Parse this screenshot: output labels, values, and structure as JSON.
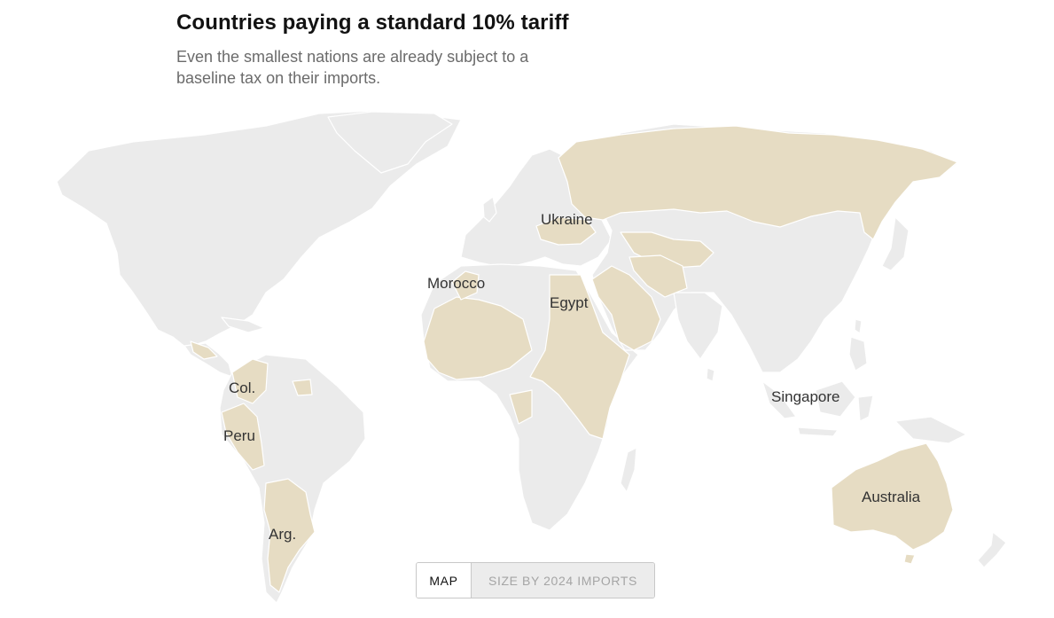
{
  "header": {
    "title": "Countries paying a standard 10% tariff",
    "subtitle": "Even the smallest nations are already subject to a baseline tax on their imports."
  },
  "map": {
    "colors": {
      "tariff_country": "#e6dcc3",
      "other_country": "#ebebeb",
      "background": "#ffffff"
    },
    "highlighted_countries": [
      "Russia",
      "Ukraine",
      "Morocco",
      "Egypt",
      "Colombia",
      "Peru",
      "Argentina",
      "Australia",
      "Singapore"
    ],
    "labels": {
      "ukraine": "Ukraine",
      "morocco": "Morocco",
      "egypt": "Egypt",
      "colombia": "Col.",
      "peru": "Peru",
      "argentina": "Arg.",
      "singapore": "Singapore",
      "australia": "Australia"
    }
  },
  "toggle": {
    "map_label": "MAP",
    "imports_label": "SIZE BY 2024 IMPORTS",
    "selected": "MAP"
  }
}
